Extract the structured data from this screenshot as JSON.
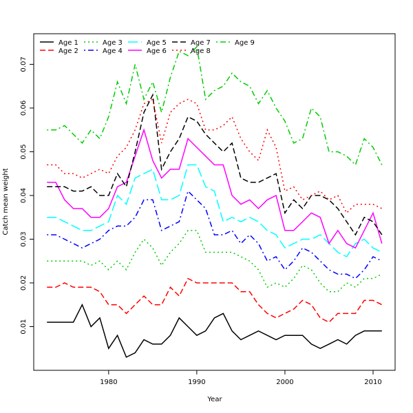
{
  "chart_data": {
    "type": "line",
    "xlabel": "Year",
    "ylabel": "Catch mean weight",
    "xlim": [
      1971.5,
      2012.5
    ],
    "ylim": [
      0,
      0.077
    ],
    "xticks": [
      1980,
      1990,
      2000,
      2010
    ],
    "yticks": [
      0.01,
      0.02,
      0.03,
      0.04,
      0.05,
      0.06,
      0.07
    ],
    "grid": false,
    "legend_position": "top-left",
    "x": [
      1973,
      1974,
      1975,
      1976,
      1977,
      1978,
      1979,
      1980,
      1981,
      1982,
      1983,
      1984,
      1985,
      1986,
      1987,
      1988,
      1989,
      1990,
      1991,
      1992,
      1993,
      1994,
      1995,
      1996,
      1997,
      1998,
      1999,
      2000,
      2001,
      2002,
      2003,
      2004,
      2005,
      2006,
      2007,
      2008,
      2009,
      2010,
      2011
    ],
    "series": [
      {
        "name": "Age 1",
        "color": "#000000",
        "style": "solid",
        "values": [
          0.011,
          0.011,
          0.011,
          0.011,
          0.015,
          0.01,
          0.012,
          0.005,
          0.008,
          0.003,
          0.004,
          0.007,
          0.006,
          0.006,
          0.008,
          0.012,
          0.01,
          0.008,
          0.009,
          0.012,
          0.013,
          0.009,
          0.007,
          0.008,
          0.009,
          0.008,
          0.007,
          0.008,
          0.008,
          0.008,
          0.006,
          0.005,
          0.006,
          0.007,
          0.006,
          0.008,
          0.009,
          0.009,
          0.009
        ]
      },
      {
        "name": "Age 2",
        "color": "#ff0000",
        "style": "dashed",
        "values": [
          0.019,
          0.019,
          0.02,
          0.019,
          0.019,
          0.019,
          0.018,
          0.015,
          0.015,
          0.013,
          0.015,
          0.017,
          0.015,
          0.015,
          0.019,
          0.017,
          0.021,
          0.02,
          0.02,
          0.02,
          0.02,
          0.02,
          0.018,
          0.018,
          0.015,
          0.013,
          0.012,
          0.013,
          0.014,
          0.016,
          0.015,
          0.012,
          0.011,
          0.013,
          0.013,
          0.013,
          0.016,
          0.016,
          0.015
        ]
      },
      {
        "name": "Age 3",
        "color": "#00cd00",
        "style": "dotted",
        "values": [
          0.025,
          0.025,
          0.025,
          0.025,
          0.025,
          0.024,
          0.025,
          0.023,
          0.025,
          0.023,
          0.027,
          0.03,
          0.028,
          0.024,
          0.027,
          0.029,
          0.032,
          0.032,
          0.027,
          0.027,
          0.027,
          0.027,
          0.026,
          0.025,
          0.023,
          0.019,
          0.02,
          0.019,
          0.021,
          0.024,
          0.023,
          0.02,
          0.018,
          0.018,
          0.02,
          0.019,
          0.021,
          0.021,
          0.022
        ]
      },
      {
        "name": "Age 4",
        "color": "#0000ff",
        "style": "dotdash",
        "values": [
          0.031,
          0.031,
          0.03,
          0.029,
          0.028,
          0.029,
          0.03,
          0.032,
          0.033,
          0.033,
          0.035,
          0.039,
          0.039,
          0.032,
          0.033,
          0.034,
          0.041,
          0.039,
          0.037,
          0.031,
          0.031,
          0.032,
          0.029,
          0.031,
          0.029,
          0.025,
          0.026,
          0.023,
          0.025,
          0.028,
          0.027,
          0.025,
          0.023,
          0.022,
          0.022,
          0.021,
          0.023,
          0.026,
          0.025
        ]
      },
      {
        "name": "Age 5",
        "color": "#00ffff",
        "style": "longdash",
        "values": [
          0.035,
          0.035,
          0.034,
          0.033,
          0.032,
          0.032,
          0.033,
          0.034,
          0.04,
          0.038,
          0.044,
          0.045,
          0.046,
          0.039,
          0.039,
          0.04,
          0.047,
          0.047,
          0.042,
          0.041,
          0.034,
          0.035,
          0.034,
          0.035,
          0.034,
          0.032,
          0.031,
          0.028,
          0.029,
          0.03,
          0.03,
          0.031,
          0.029,
          0.027,
          0.026,
          0.029,
          0.03,
          0.028,
          0.027
        ]
      },
      {
        "name": "Age 6",
        "color": "#ff00ff",
        "style": "solid",
        "values": [
          0.043,
          0.043,
          0.039,
          0.037,
          0.037,
          0.035,
          0.035,
          0.037,
          0.042,
          0.043,
          0.049,
          0.055,
          0.048,
          0.044,
          0.046,
          0.046,
          0.053,
          0.051,
          0.049,
          0.047,
          0.047,
          0.04,
          0.038,
          0.039,
          0.037,
          0.039,
          0.04,
          0.032,
          0.032,
          0.034,
          0.036,
          0.035,
          0.029,
          0.032,
          0.029,
          0.028,
          0.032,
          0.036,
          0.029
        ]
      },
      {
        "name": "Age 7",
        "color": "#000000",
        "style": "dashed",
        "values": [
          0.042,
          0.042,
          0.042,
          0.041,
          0.041,
          0.042,
          0.04,
          0.04,
          0.045,
          0.042,
          0.05,
          0.059,
          0.063,
          0.046,
          0.05,
          0.053,
          0.058,
          0.057,
          0.054,
          0.052,
          0.05,
          0.052,
          0.044,
          0.043,
          0.043,
          0.044,
          0.045,
          0.036,
          0.039,
          0.037,
          0.04,
          0.04,
          0.039,
          0.037,
          0.034,
          0.031,
          0.035,
          0.034,
          0.031
        ]
      },
      {
        "name": "Age 8",
        "color": "#ff0000",
        "style": "dotted",
        "values": [
          0.047,
          0.047,
          0.045,
          0.045,
          0.044,
          0.045,
          0.046,
          0.045,
          0.049,
          0.051,
          0.055,
          0.061,
          0.062,
          0.052,
          0.059,
          0.061,
          0.062,
          0.061,
          0.055,
          0.055,
          0.056,
          0.058,
          0.053,
          0.05,
          0.048,
          0.055,
          0.051,
          0.041,
          0.042,
          0.039,
          0.04,
          0.041,
          0.039,
          0.04,
          0.036,
          0.038,
          0.038,
          0.038,
          0.037
        ]
      },
      {
        "name": "Age 9",
        "color": "#00cd00",
        "style": "dotdash",
        "values": [
          0.055,
          0.055,
          0.056,
          0.054,
          0.052,
          0.055,
          0.053,
          0.058,
          0.066,
          0.061,
          0.07,
          0.062,
          0.066,
          0.059,
          0.067,
          0.073,
          0.072,
          0.074,
          0.062,
          0.064,
          0.065,
          0.068,
          0.066,
          0.065,
          0.061,
          0.064,
          0.06,
          0.057,
          0.052,
          0.053,
          0.06,
          0.058,
          0.05,
          0.05,
          0.049,
          0.047,
          0.053,
          0.051,
          0.047
        ]
      }
    ]
  }
}
